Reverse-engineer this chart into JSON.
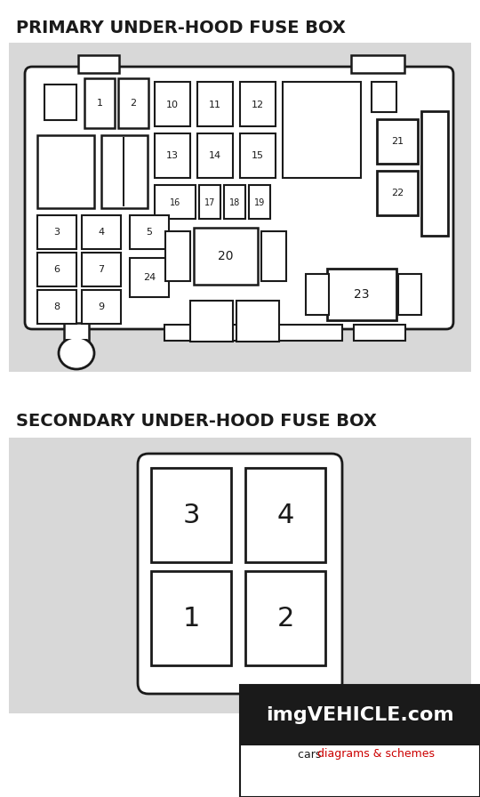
{
  "title1": "PRIMARY UNDER-HOOD FUSE BOX",
  "title2": "SECONDARY UNDER-HOOD FUSE BOX",
  "bg_color": "#ffffff",
  "diagram_bg": "#d8d8d8",
  "title_color": "#1a1a1a",
  "watermark_bg": "#ffffff",
  "watermark_text1": "imgVEHICLE.com",
  "watermark_sub1": "cars ",
  "watermark_sub2": "diagrams & schemes",
  "sub2_color": "#cc0000"
}
